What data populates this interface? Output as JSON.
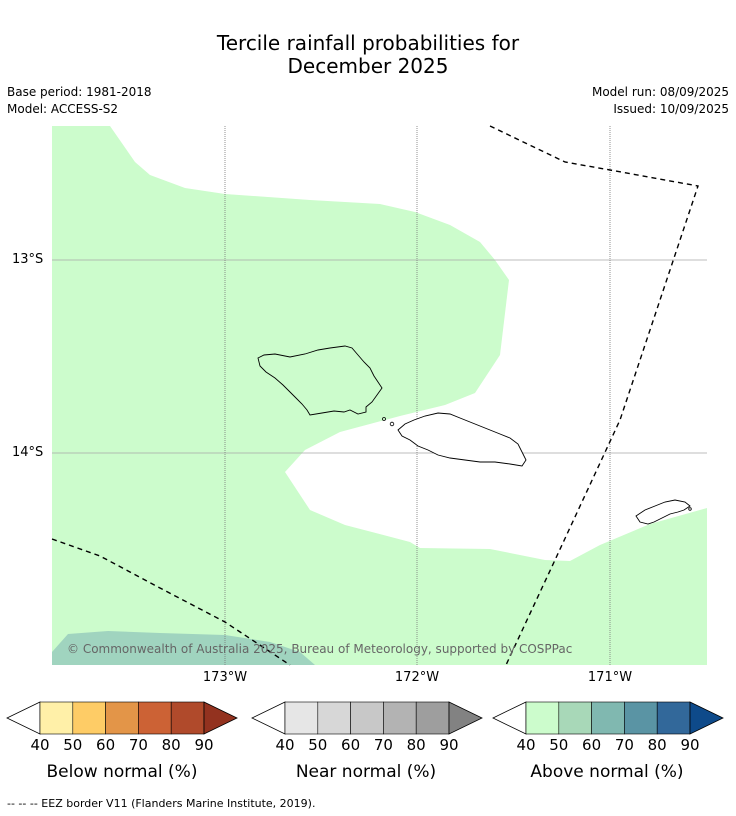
{
  "title_line1": "Tercile rainfall probabilities for",
  "title_line2": "December 2025",
  "meta": {
    "base_period": "Base period: 1981-2018",
    "model": "Model: ACCESS-S2",
    "model_run": "Model run: 08/09/2025",
    "issued": "Issued: 10/09/2025"
  },
  "axes": {
    "lat_labels": [
      "13°S",
      "14°S"
    ],
    "lon_labels": [
      "173°W",
      "172°W",
      "171°W"
    ]
  },
  "copyright": "© Commonwealth of Australia 2025, Bureau of Meteorology, supported by COSPPac",
  "colorbars": [
    {
      "label": "Below normal (%)",
      "ticks": [
        "40",
        "50",
        "60",
        "70",
        "80",
        "90"
      ],
      "colors": [
        "#fff0a8",
        "#fecc66",
        "#e39548",
        "#cc6235",
        "#b04a2b",
        "#93321f"
      ]
    },
    {
      "label": "Near normal (%)",
      "ticks": [
        "40",
        "50",
        "60",
        "70",
        "80",
        "90"
      ],
      "colors": [
        "#e6e6e6",
        "#d7d7d7",
        "#c8c8c8",
        "#b3b3b3",
        "#9e9e9e",
        "#828282"
      ]
    },
    {
      "label": "Above normal (%)",
      "ticks": [
        "40",
        "50",
        "60",
        "70",
        "80",
        "90"
      ],
      "colors": [
        "#ccfccc",
        "#a8d8b8",
        "#80b8b0",
        "#5a94a4",
        "#32689a",
        "#0e4a8a"
      ]
    }
  ],
  "footer": "--  --  -- EEZ border V11 (Flanders Marine Institute, 2019)."
}
